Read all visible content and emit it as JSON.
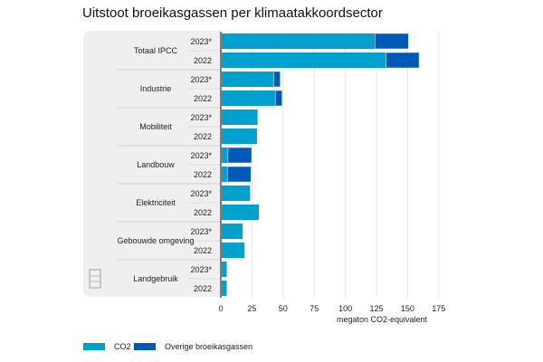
{
  "chart_data": {
    "type": "bar",
    "orientation": "horizontal",
    "stacked": true,
    "title": "Uitstoot broeikasgassen per klimaatakkoordsector",
    "xlabel": "megaton CO2-equivalent",
    "xlim": [
      0,
      180
    ],
    "xticks": [
      0,
      25,
      50,
      75,
      100,
      125,
      150,
      175
    ],
    "grid": true,
    "legend_position": "bottom-left",
    "groups": [
      {
        "name": "Totaal IPCC",
        "rows": [
          {
            "year": "2023*",
            "CO2": 123,
            "Overige": 27
          },
          {
            "year": "2022",
            "CO2": 132,
            "Overige": 26.5
          }
        ]
      },
      {
        "name": "Industrie",
        "rows": [
          {
            "year": "2023*",
            "CO2": 42,
            "Overige": 5
          },
          {
            "year": "2022",
            "CO2": 43,
            "Overige": 5.5
          }
        ]
      },
      {
        "name": "Mobiliteit",
        "rows": [
          {
            "year": "2023*",
            "CO2": 29,
            "Overige": 0.3
          },
          {
            "year": "2022",
            "CO2": 28.5,
            "Overige": 0.3
          }
        ]
      },
      {
        "name": "Landbouw",
        "rows": [
          {
            "year": "2023*",
            "CO2": 5,
            "Overige": 19
          },
          {
            "year": "2022",
            "CO2": 4.5,
            "Overige": 19
          }
        ]
      },
      {
        "name": "Elektriciteit",
        "rows": [
          {
            "year": "2023*",
            "CO2": 23,
            "Overige": 0.2
          },
          {
            "year": "2022",
            "CO2": 30,
            "Overige": 0.2
          }
        ]
      },
      {
        "name": "Gebouwde omgeving",
        "rows": [
          {
            "year": "2023*",
            "CO2": 17,
            "Overige": 0.2
          },
          {
            "year": "2022",
            "CO2": 18.5,
            "Overige": 0.2
          }
        ]
      },
      {
        "name": "Landgebruik",
        "rows": [
          {
            "year": "2023*",
            "CO2": 4,
            "Overige": 0.5
          },
          {
            "year": "2022",
            "CO2": 4,
            "Overige": 0.5
          }
        ]
      }
    ],
    "series": [
      {
        "name": "CO2",
        "color": "#00a1cd"
      },
      {
        "name": "Overige broeikasgassen",
        "color": "#0058b8"
      }
    ]
  }
}
